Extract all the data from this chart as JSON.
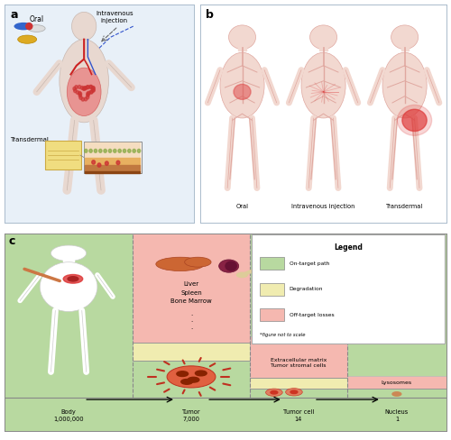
{
  "panel_a_label": "a",
  "panel_b_label": "b",
  "panel_c_label": "c",
  "panel_a_bg": "#e8f0f8",
  "color_green": "#b8d9a0",
  "color_yellow": "#f0ecb0",
  "color_pink": "#f5b8b0",
  "body_label": "Body\n1,000,000",
  "tumor_label": "Tumor\n7,000",
  "tumor_cell_label": "Tumor cell\n14",
  "nucleus_label": "Nucleus\n1",
  "liver_text": "Liver\nSpleen\nBone Marrow",
  "dots_text": ".\n.\n.",
  "extracell_text": "Extracellular matrix\nTumor stromal cells",
  "lysosome_text": "Lysosomes",
  "legend_title": "Legend",
  "legend_items": [
    "On-target path",
    "Degradation",
    "Off-target losses"
  ],
  "legend_colors": [
    "#b8d9a0",
    "#f0ecb0",
    "#f5b8b0"
  ],
  "legend_note": "*figure not to scale",
  "oral_label": "Oral",
  "iv_label": "Intravenous injection",
  "transdermal_label": "Transdermal",
  "body_color": "#e8d8d0",
  "vein_color": "#e0a8a0",
  "col1": 0.29,
  "col2": 0.555,
  "col3": 0.775
}
